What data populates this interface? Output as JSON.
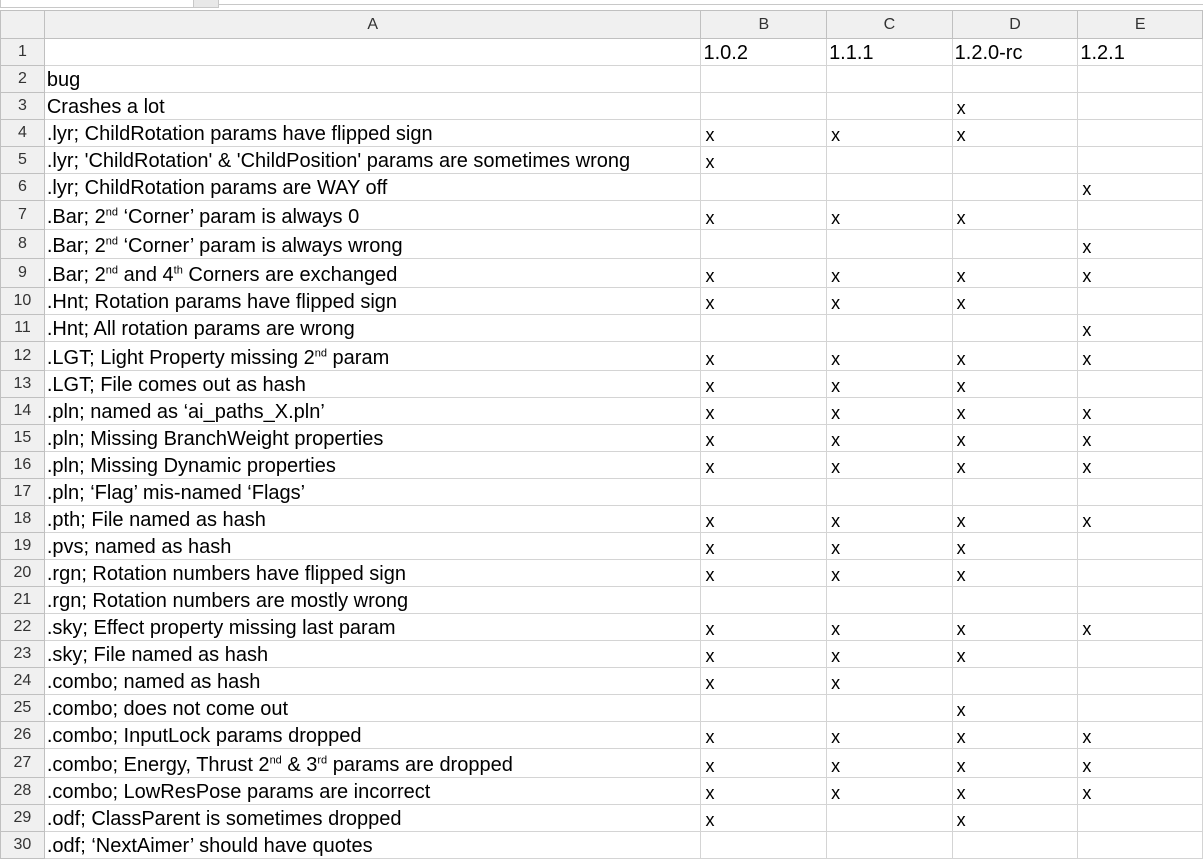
{
  "columns": [
    "A",
    "B",
    "C",
    "D",
    "E"
  ],
  "header_row": [
    "",
    "1.0.2",
    "1.1.1",
    "1.2.0-rc",
    "1.2.1"
  ],
  "rows": [
    {
      "num": "2",
      "desc": "bug",
      "b": "",
      "c": "",
      "d": "",
      "e": ""
    },
    {
      "num": "3",
      "desc": "Crashes a lot",
      "b": "",
      "c": "",
      "d": "x",
      "e": ""
    },
    {
      "num": "4",
      "desc": ".lyr; ChildRotation params have flipped sign",
      "b": "x",
      "c": "x",
      "d": "x",
      "e": ""
    },
    {
      "num": "5",
      "desc": ".lyr; 'ChildRotation' & 'ChildPosition' params are sometimes wrong",
      "b": "x",
      "c": "",
      "d": "",
      "e": ""
    },
    {
      "num": "6",
      "desc": ".lyr; ChildRotation params are WAY off",
      "b": "",
      "c": "",
      "d": "",
      "e": "x"
    },
    {
      "num": "7",
      "desc": ".Bar; 2|nd| ‘Corner’ param is always 0",
      "b": "x",
      "c": "x",
      "d": "x",
      "e": ""
    },
    {
      "num": "8",
      "desc": ".Bar; 2|nd| ‘Corner’ param is always wrong",
      "b": "",
      "c": "",
      "d": "",
      "e": "x"
    },
    {
      "num": "9",
      "desc": ".Bar; 2|nd| and 4|th| Corners are exchanged",
      "b": "x",
      "c": "x",
      "d": "x",
      "e": "x"
    },
    {
      "num": "10",
      "desc": ".Hnt; Rotation params have flipped sign",
      "b": "x",
      "c": "x",
      "d": "x",
      "e": ""
    },
    {
      "num": "11",
      "desc": ".Hnt; All rotation params are wrong",
      "b": "",
      "c": "",
      "d": "",
      "e": "x"
    },
    {
      "num": "12",
      "desc": ".LGT; Light Property missing 2|nd| param",
      "b": "x",
      "c": "x",
      "d": "x",
      "e": "x"
    },
    {
      "num": "13",
      "desc": ".LGT; File comes out as hash",
      "b": "x",
      "c": "x",
      "d": "x",
      "e": ""
    },
    {
      "num": "14",
      "desc": ".pln; named as ‘ai_paths_X.pln’",
      "b": "x",
      "c": "x",
      "d": "x",
      "e": "x"
    },
    {
      "num": "15",
      "desc": ".pln; Missing BranchWeight properties",
      "b": "x",
      "c": "x",
      "d": "x",
      "e": "x"
    },
    {
      "num": "16",
      "desc": ".pln; Missing Dynamic properties",
      "b": "x",
      "c": "x",
      "d": "x",
      "e": "x"
    },
    {
      "num": "17",
      "desc": ".pln; ‘Flag’ mis-named ‘Flags’",
      "b": "",
      "c": "",
      "d": "",
      "e": ""
    },
    {
      "num": "18",
      "desc": ".pth; File named as hash",
      "b": "x",
      "c": "x",
      "d": "x",
      "e": "x"
    },
    {
      "num": "19",
      "desc": ".pvs; named as hash",
      "b": "x",
      "c": "x",
      "d": "x",
      "e": ""
    },
    {
      "num": "20",
      "desc": ".rgn; Rotation numbers have flipped sign",
      "b": "x",
      "c": "x",
      "d": "x",
      "e": ""
    },
    {
      "num": "21",
      "desc": ".rgn; Rotation numbers are mostly wrong",
      "b": "",
      "c": "",
      "d": "",
      "e": ""
    },
    {
      "num": "22",
      "desc": ".sky; Effect property missing last param",
      "b": "x",
      "c": "x",
      "d": "x",
      "e": "x"
    },
    {
      "num": "23",
      "desc": ".sky; File named as hash",
      "b": "x",
      "c": "x",
      "d": "x",
      "e": ""
    },
    {
      "num": "24",
      "desc": ".combo; named as hash",
      "b": "x",
      "c": "x",
      "d": "",
      "e": ""
    },
    {
      "num": "25",
      "desc": ".combo; does not come out",
      "b": "",
      "c": "",
      "d": "x",
      "e": ""
    },
    {
      "num": "26",
      "desc": ".combo; InputLock params dropped",
      "b": "x",
      "c": "x",
      "d": "x",
      "e": "x"
    },
    {
      "num": "27",
      "desc": ".combo; Energy, Thrust 2|nd| & 3|rd| params are dropped",
      "b": "x",
      "c": "x",
      "d": "x",
      "e": "x"
    },
    {
      "num": "28",
      "desc": ".combo; LowResPose params are incorrect",
      "b": "x",
      "c": "x",
      "d": "x",
      "e": "x"
    },
    {
      "num": "29",
      "desc": ".odf; ClassParent is sometimes dropped",
      "b": "x",
      "c": "",
      "d": "x",
      "e": ""
    },
    {
      "num": "30",
      "desc": ".odf; ‘NextAimer’ should have quotes",
      "b": "",
      "c": "",
      "d": "",
      "e": ""
    }
  ]
}
